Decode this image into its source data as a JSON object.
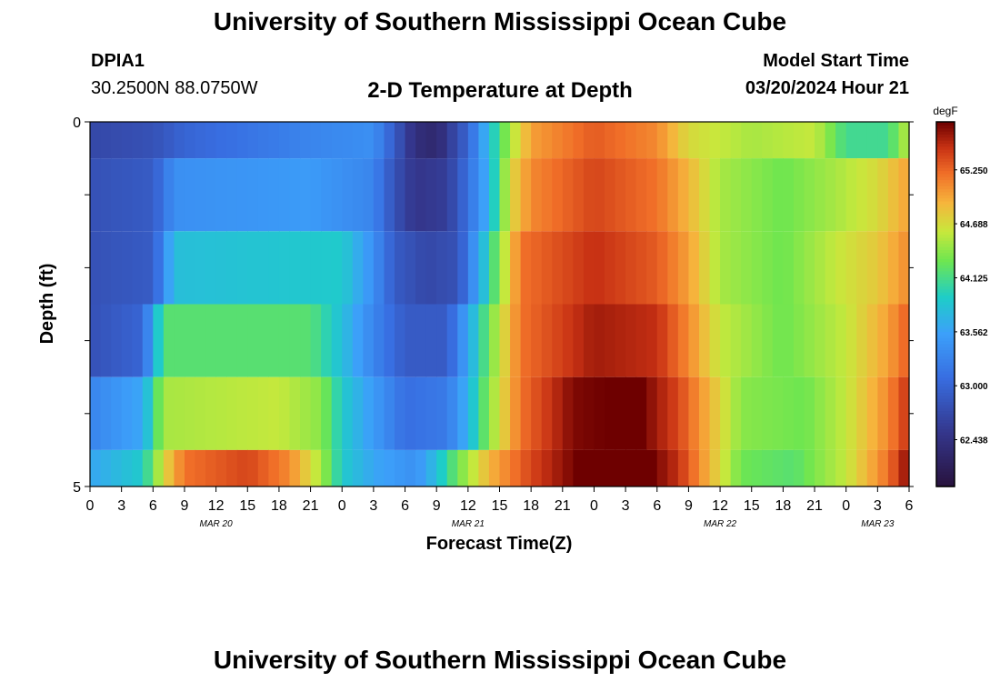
{
  "page": {
    "title_top": "University of Southern Mississippi Ocean Cube",
    "title_bottom": "University of Southern Mississippi Ocean Cube",
    "station": "DPIA1",
    "coords": "30.2500N  88.0750W",
    "subtitle": "2-D Temperature at Depth",
    "model_start_label": "Model Start Time",
    "model_start_value": "03/20/2024 Hour 21"
  },
  "chart_data": {
    "type": "heatmap",
    "title": "2-D Temperature at Depth",
    "xlabel": "Forecast Time(Z)",
    "ylabel": "Depth (ft)",
    "y_ticks": [
      "0",
      "5"
    ],
    "ylim": [
      0,
      5
    ],
    "x_range_hours": [
      0,
      78
    ],
    "x_tick_labels": [
      "0",
      "3",
      "6",
      "9",
      "12",
      "15",
      "18",
      "21",
      "0",
      "3",
      "6",
      "9",
      "12",
      "15",
      "18",
      "21",
      "0",
      "3",
      "6",
      "9",
      "12",
      "15",
      "18",
      "21",
      "0",
      "3",
      "6"
    ],
    "date_labels": [
      {
        "label": "MAR 20",
        "hour": 12
      },
      {
        "label": "MAR 21",
        "hour": 36
      },
      {
        "label": "MAR 22",
        "hour": 60
      },
      {
        "label": "MAR 23",
        "hour": 75
      }
    ],
    "colorbar": {
      "unit": "degF",
      "min": 61.95,
      "max": 65.75,
      "tick_labels": [
        "65.250",
        "64.688",
        "64.125",
        "63.562",
        "63.000",
        "62.438"
      ],
      "tick_values": [
        65.25,
        64.688,
        64.125,
        63.562,
        63.0,
        62.438
      ]
    },
    "rows": [
      {
        "depth_band": [
          0.0,
          0.5
        ],
        "knots": [
          [
            0,
            62.7
          ],
          [
            6,
            62.8
          ],
          [
            9,
            63.0
          ],
          [
            21,
            63.3
          ],
          [
            27,
            63.4
          ],
          [
            31,
            62.4
          ],
          [
            33,
            62.3
          ],
          [
            36,
            63.0
          ],
          [
            38,
            63.8
          ],
          [
            40,
            64.5
          ],
          [
            42,
            65.0
          ],
          [
            48,
            65.3
          ],
          [
            54,
            65.1
          ],
          [
            57,
            64.7
          ],
          [
            63,
            64.5
          ],
          [
            69,
            64.6
          ],
          [
            72,
            64.1
          ],
          [
            76,
            64.1
          ],
          [
            78,
            64.6
          ]
        ]
      },
      {
        "depth_band": [
          0.5,
          1.5
        ],
        "knots": [
          [
            0,
            62.8
          ],
          [
            6,
            62.9
          ],
          [
            8,
            63.4
          ],
          [
            21,
            63.5
          ],
          [
            24,
            63.4
          ],
          [
            27,
            63.3
          ],
          [
            29,
            62.8
          ],
          [
            31,
            62.5
          ],
          [
            34,
            62.6
          ],
          [
            36,
            63.1
          ],
          [
            38,
            63.7
          ],
          [
            40,
            64.7
          ],
          [
            42,
            65.1
          ],
          [
            48,
            65.4
          ],
          [
            54,
            65.2
          ],
          [
            57,
            64.9
          ],
          [
            60,
            64.5
          ],
          [
            66,
            64.3
          ],
          [
            71,
            64.5
          ],
          [
            75,
            64.7
          ],
          [
            78,
            65.0
          ]
        ]
      },
      {
        "depth_band": [
          1.5,
          2.5
        ],
        "knots": [
          [
            0,
            62.8
          ],
          [
            6,
            62.9
          ],
          [
            8,
            63.8
          ],
          [
            24,
            63.9
          ],
          [
            27,
            63.4
          ],
          [
            29,
            62.9
          ],
          [
            32,
            62.7
          ],
          [
            35,
            62.8
          ],
          [
            37,
            63.6
          ],
          [
            39,
            64.4
          ],
          [
            41,
            65.2
          ],
          [
            48,
            65.5
          ],
          [
            54,
            65.3
          ],
          [
            57,
            65.0
          ],
          [
            60,
            64.5
          ],
          [
            66,
            64.3
          ],
          [
            71,
            64.6
          ],
          [
            75,
            64.8
          ],
          [
            78,
            65.1
          ]
        ]
      },
      {
        "depth_band": [
          2.5,
          3.5
        ],
        "knots": [
          [
            0,
            62.8
          ],
          [
            5,
            63.0
          ],
          [
            7,
            64.2
          ],
          [
            21,
            64.2
          ],
          [
            24,
            63.8
          ],
          [
            27,
            63.3
          ],
          [
            30,
            62.9
          ],
          [
            34,
            62.9
          ],
          [
            36,
            63.6
          ],
          [
            38,
            64.3
          ],
          [
            41,
            65.2
          ],
          [
            48,
            65.6
          ],
          [
            54,
            65.5
          ],
          [
            57,
            65.1
          ],
          [
            60,
            64.6
          ],
          [
            66,
            64.3
          ],
          [
            72,
            64.6
          ],
          [
            76,
            65.0
          ],
          [
            78,
            65.3
          ]
        ]
      },
      {
        "depth_band": [
          3.5,
          4.5
        ],
        "knots": [
          [
            0,
            63.3
          ],
          [
            5,
            63.6
          ],
          [
            7,
            64.5
          ],
          [
            18,
            64.6
          ],
          [
            22,
            64.4
          ],
          [
            24,
            63.9
          ],
          [
            27,
            63.5
          ],
          [
            30,
            63.1
          ],
          [
            34,
            63.2
          ],
          [
            36,
            63.7
          ],
          [
            38,
            64.4
          ],
          [
            41,
            65.2
          ],
          [
            46,
            65.7
          ],
          [
            52,
            65.8
          ],
          [
            56,
            65.4
          ],
          [
            59,
            64.9
          ],
          [
            62,
            64.4
          ],
          [
            68,
            64.3
          ],
          [
            72,
            64.6
          ],
          [
            76,
            65.1
          ],
          [
            78,
            65.5
          ]
        ]
      },
      {
        "depth_band": [
          4.5,
          5.0
        ],
        "knots": [
          [
            0,
            63.6
          ],
          [
            5,
            63.9
          ],
          [
            7,
            64.7
          ],
          [
            9,
            65.2
          ],
          [
            15,
            65.4
          ],
          [
            19,
            65.1
          ],
          [
            22,
            64.5
          ],
          [
            24,
            63.9
          ],
          [
            27,
            63.6
          ],
          [
            31,
            63.4
          ],
          [
            33,
            63.8
          ],
          [
            35,
            64.3
          ],
          [
            38,
            64.9
          ],
          [
            42,
            65.4
          ],
          [
            47,
            65.8
          ],
          [
            52,
            65.9
          ],
          [
            56,
            65.5
          ],
          [
            59,
            64.9
          ],
          [
            62,
            64.3
          ],
          [
            67,
            64.2
          ],
          [
            72,
            64.6
          ],
          [
            76,
            65.2
          ],
          [
            78,
            65.7
          ]
        ]
      }
    ]
  }
}
